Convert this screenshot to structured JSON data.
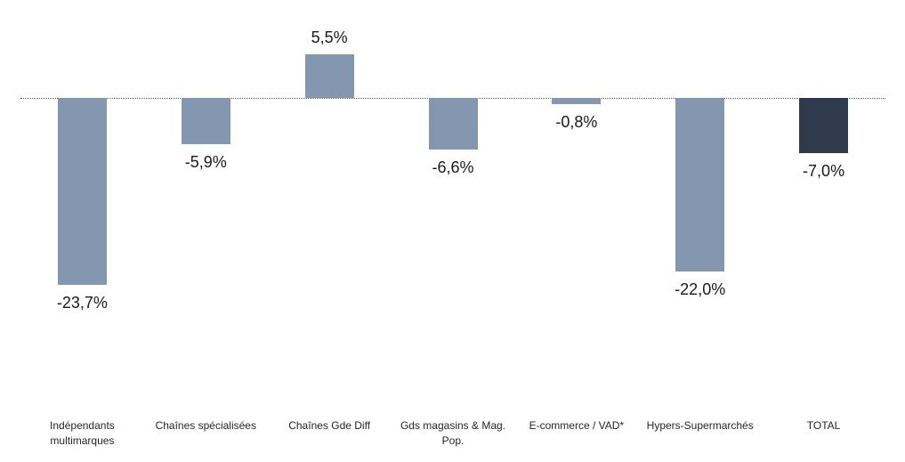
{
  "chart_data": {
    "type": "bar",
    "categories": [
      "Indépendants multimarques",
      "Chaînes spécialisées",
      "Chaînes Gde Diff",
      "Gds magasins & Mag. Pop.",
      "E-commerce / VAD*",
      "Hypers-Supermarchés",
      "TOTAL"
    ],
    "category_lines": [
      [
        "Indépendants",
        "multimarques"
      ],
      [
        "Chaînes spécialisées"
      ],
      [
        "Chaînes Gde Diff"
      ],
      [
        "Gds magasins & Mag.",
        "Pop."
      ],
      [
        "E-commerce / VAD*"
      ],
      [
        "Hypers-Supermarchés"
      ],
      [
        "TOTAL"
      ]
    ],
    "values": [
      -23.7,
      -5.9,
      5.5,
      -6.6,
      -0.8,
      -22.0,
      -7.0
    ],
    "data_labels": [
      "-23,7%",
      "-5,9%",
      "5,5%",
      "-6,6%",
      "-0,8%",
      "-22,0%",
      "-7,0%"
    ],
    "bar_colors": [
      "#8497B0",
      "#8497B0",
      "#8497B0",
      "#8497B0",
      "#8497B0",
      "#8497B0",
      "#2F3A4D"
    ],
    "baseline_value": 0,
    "ylim": [
      -26,
      7
    ],
    "grid": false,
    "legend": false,
    "axis_line_style": "dotted",
    "axis_line_color": "#595959",
    "data_label_color": "#1a1a1a"
  }
}
